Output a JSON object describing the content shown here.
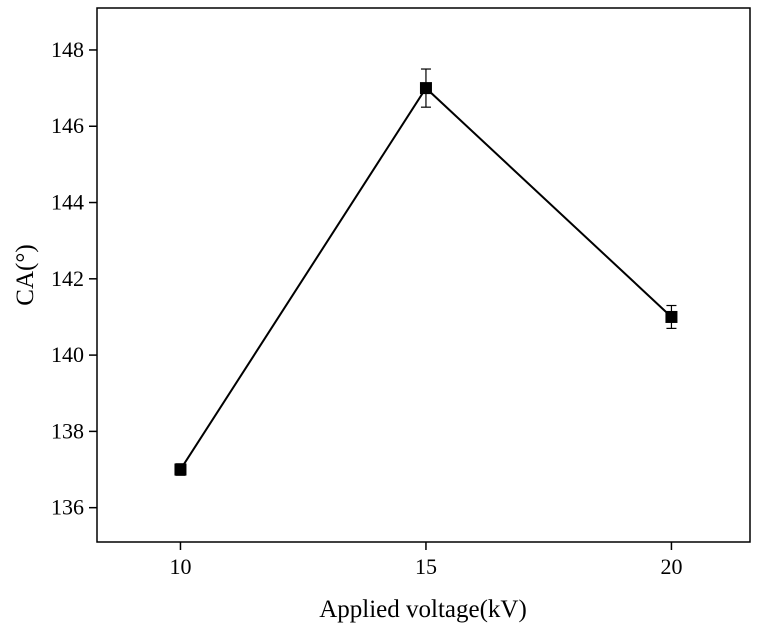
{
  "chart_data": {
    "type": "line",
    "xlabel": "Applied voltage(kV)",
    "ylabel": "CA(°)",
    "x": [
      10,
      15,
      20
    ],
    "xticks": [
      10,
      15,
      20
    ],
    "xlim": [
      8.3,
      21.6
    ],
    "ylim": [
      135.1,
      149.1
    ],
    "yticks": [
      136,
      138,
      140,
      142,
      144,
      146,
      148
    ],
    "grid": false,
    "legend": "none",
    "series": [
      {
        "values": [
          137.0,
          147.0,
          141.0
        ],
        "error": [
          0.15,
          0.5,
          0.3
        ],
        "color": "#000000",
        "marker": "square"
      }
    ]
  }
}
